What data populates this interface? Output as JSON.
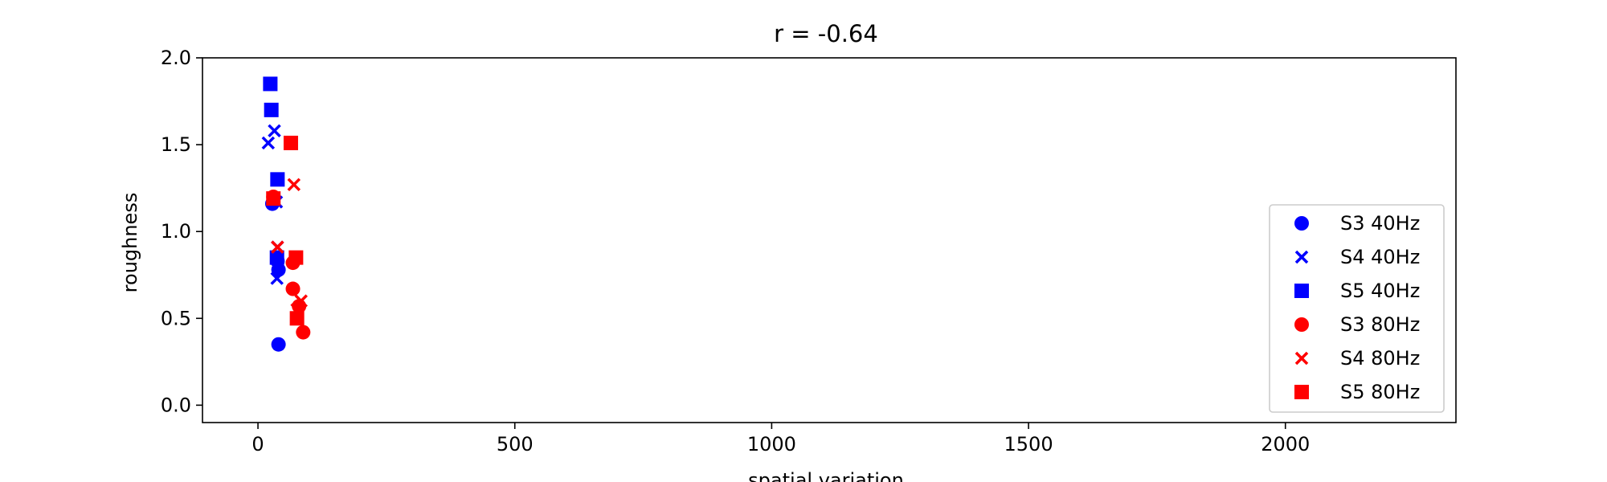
{
  "chart_data": {
    "type": "scatter",
    "title": "r = -0.64",
    "xlabel": "spatial variation",
    "ylabel": "roughness",
    "xlim": [
      -108,
      2332
    ],
    "ylim": [
      -0.1,
      2.0
    ],
    "xticks": [
      0,
      500,
      1000,
      1500,
      2000
    ],
    "yticks": [
      0.0,
      0.5,
      1.0,
      1.5,
      2.0
    ],
    "ytick_labels": [
      "0.0",
      "0.5",
      "1.0",
      "1.5",
      "2.0"
    ],
    "legend_position": "right",
    "series": [
      {
        "name": "S3 40Hz",
        "marker": "circle",
        "color": "#0000ff",
        "points": [
          [
            28,
            1.16
          ],
          [
            40,
            0.78
          ],
          [
            38,
            0.83
          ],
          [
            40,
            0.35
          ]
        ]
      },
      {
        "name": "S4 40Hz",
        "marker": "x",
        "color": "#0000ff",
        "points": [
          [
            20,
            1.51
          ],
          [
            32,
            1.58
          ],
          [
            36,
            1.17
          ],
          [
            38,
            0.91
          ],
          [
            37,
            0.73
          ]
        ]
      },
      {
        "name": "S5 40Hz",
        "marker": "square",
        "color": "#0000ff",
        "points": [
          [
            24,
            1.85
          ],
          [
            26,
            1.7
          ],
          [
            38,
            1.3
          ],
          [
            37,
            0.85
          ]
        ]
      },
      {
        "name": "S3 80Hz",
        "marker": "circle",
        "color": "#ff0000",
        "points": [
          [
            30,
            1.2
          ],
          [
            68,
            0.82
          ],
          [
            68,
            0.67
          ],
          [
            88,
            0.42
          ],
          [
            80,
            0.57
          ]
        ]
      },
      {
        "name": "S4 80Hz",
        "marker": "x",
        "color": "#ff0000",
        "points": [
          [
            70,
            1.27
          ],
          [
            38,
            0.91
          ],
          [
            76,
            0.55
          ],
          [
            84,
            0.6
          ]
        ]
      },
      {
        "name": "S5 80Hz",
        "marker": "square",
        "color": "#ff0000",
        "points": [
          [
            64,
            1.51
          ],
          [
            30,
            1.19
          ],
          [
            74,
            0.85
          ],
          [
            76,
            0.5
          ]
        ]
      }
    ]
  }
}
